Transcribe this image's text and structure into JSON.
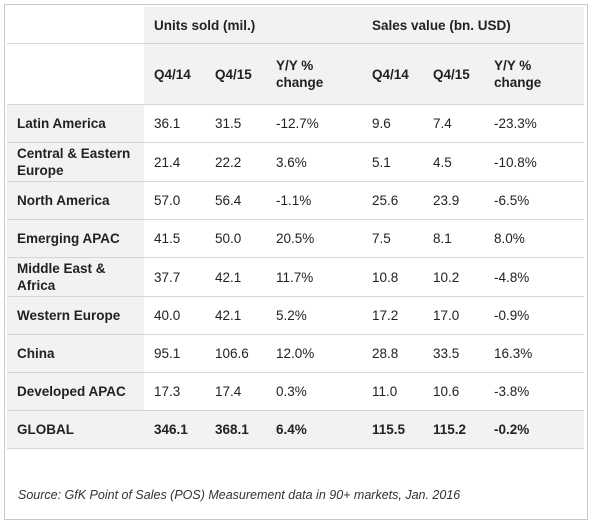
{
  "header": {
    "group_units": "Units sold (mil.)",
    "group_sales": "Sales value (bn. USD)",
    "col_q414": "Q4/14",
    "col_q415": "Q4/15",
    "col_yoy_line1": "Y/Y %",
    "col_yoy_line2": "change"
  },
  "rows": [
    {
      "region": "Latin America",
      "u14": "36.1",
      "u15": "31.5",
      "uyoy": "-12.7%",
      "s14": "9.6",
      "s15": "7.4",
      "syoy": "-23.3%"
    },
    {
      "region": "Central & Eastern Europe",
      "u14": "21.4",
      "u15": "22.2",
      "uyoy": "3.6%",
      "s14": "5.1",
      "s15": "4.5",
      "syoy": "-10.8%"
    },
    {
      "region": "North America",
      "u14": "57.0",
      "u15": "56.4",
      "uyoy": "-1.1%",
      "s14": "25.6",
      "s15": "23.9",
      "syoy": "-6.5%"
    },
    {
      "region": "Emerging APAC",
      "u14": "41.5",
      "u15": "50.0",
      "uyoy": "20.5%",
      "s14": "7.5",
      "s15": "8.1",
      "syoy": "8.0%"
    },
    {
      "region": "Middle East & Africa",
      "u14": "37.7",
      "u15": "42.1",
      "uyoy": "11.7%",
      "s14": "10.8",
      "s15": "10.2",
      "syoy": "-4.8%"
    },
    {
      "region": "Western Europe",
      "u14": "40.0",
      "u15": "42.1",
      "uyoy": "5.2%",
      "s14": "17.2",
      "s15": "17.0",
      "syoy": "-0.9%"
    },
    {
      "region": "China",
      "u14": "95.1",
      "u15": "106.6",
      "uyoy": "12.0%",
      "s14": "28.8",
      "s15": "33.5",
      "syoy": "16.3%"
    },
    {
      "region": "Developed APAC",
      "u14": "17.3",
      "u15": "17.4",
      "uyoy": "0.3%",
      "s14": "11.0",
      "s15": "10.6",
      "syoy": "-3.8%"
    },
    {
      "region": "GLOBAL",
      "u14": "346.1",
      "u15": "368.1",
      "uyoy": "6.4%",
      "s14": "115.5",
      "s15": "115.2",
      "syoy": "-0.2%"
    }
  ],
  "source": "Source: GfK Point of Sales (POS) Measurement data in 90+ markets, Jan. 2016",
  "colors": {
    "header_grey": "#f2f2f2",
    "border": "#d6d6d6",
    "frame": "#c9c9c9"
  }
}
